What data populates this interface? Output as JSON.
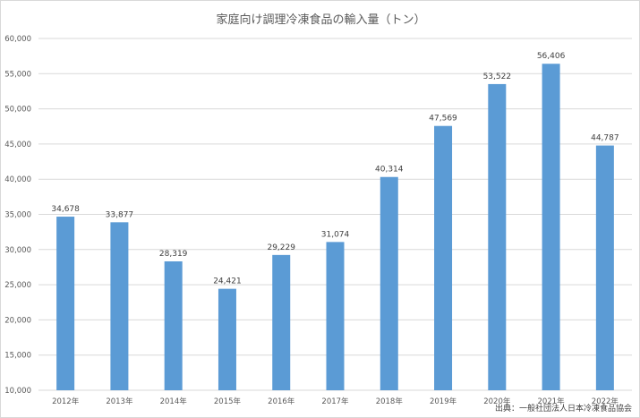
{
  "chart_data": {
    "type": "bar",
    "title": "家庭向け調理冷凍食品の輸入量（トン）",
    "categories": [
      "2012年",
      "2013年",
      "2014年",
      "2015年",
      "2016年",
      "2017年",
      "2018年",
      "2019年",
      "2020年",
      "2021年",
      "2022年"
    ],
    "values": [
      34678,
      33877,
      28319,
      24421,
      29229,
      31074,
      40314,
      47569,
      53522,
      56406,
      44787
    ],
    "value_labels": [
      "34,678",
      "33,877",
      "28,319",
      "24,421",
      "29,229",
      "31,074",
      "40,314",
      "47,569",
      "53,522",
      "56,406",
      "44,787"
    ],
    "yticks": [
      10000,
      15000,
      20000,
      25000,
      30000,
      35000,
      40000,
      45000,
      50000,
      55000,
      60000
    ],
    "ytick_labels": [
      "10,000",
      "15,000",
      "20,000",
      "25,000",
      "30,000",
      "35,000",
      "40,000",
      "45,000",
      "50,000",
      "55,000",
      "60,000"
    ],
    "ylim": [
      10000,
      60000
    ],
    "xlabel": "",
    "ylabel": "",
    "grid": true,
    "bar_color": "#5b9bd5",
    "source": "出典：一般社団法人日本冷凍食品協会"
  }
}
